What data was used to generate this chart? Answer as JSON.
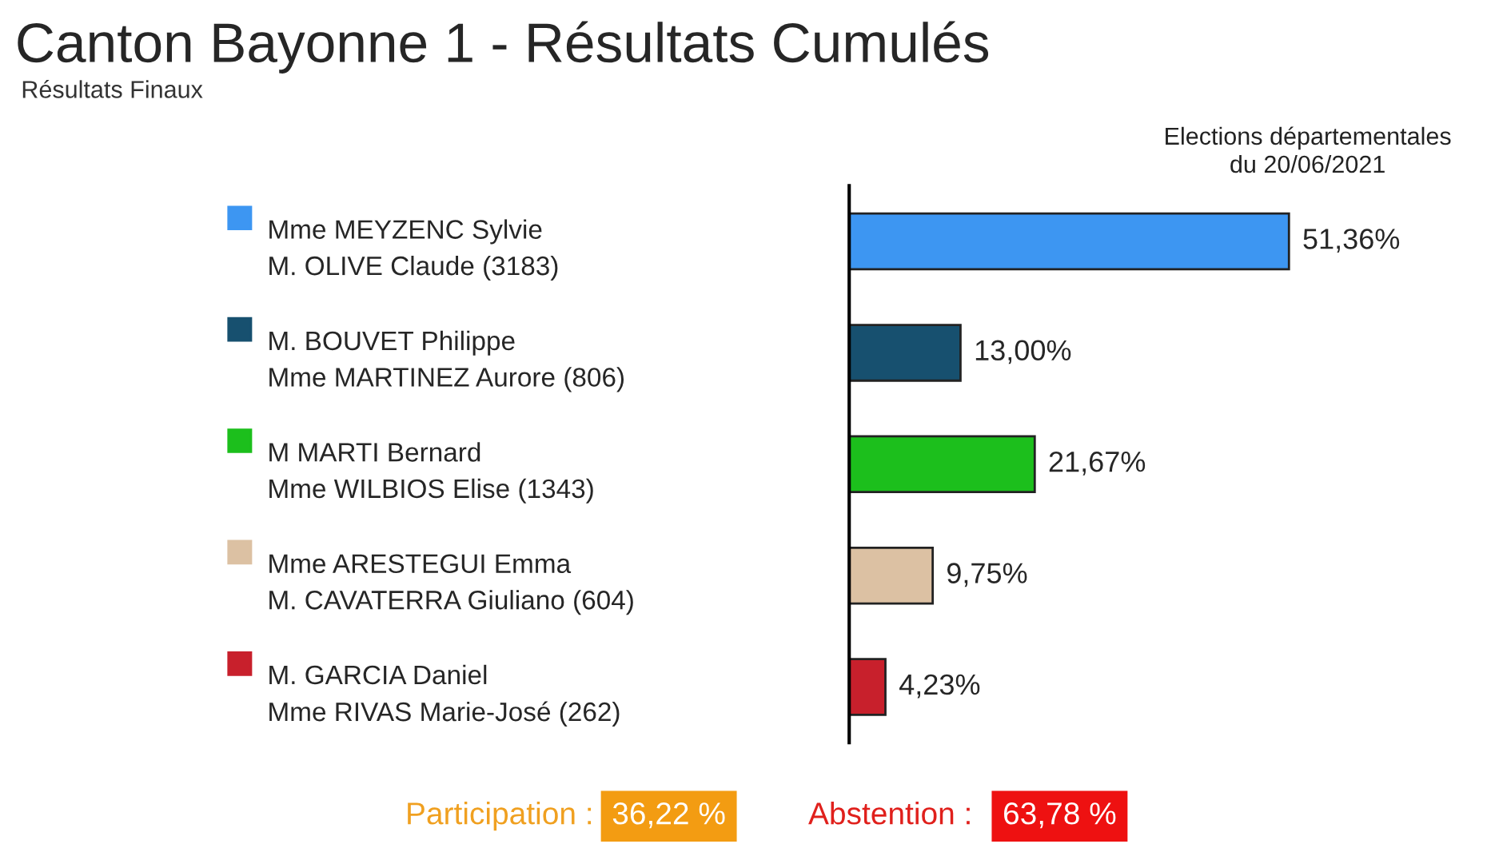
{
  "chart_data": {
    "type": "bar",
    "orientation": "horizontal",
    "title": "Canton Bayonne 1 - Résultats Cumulés",
    "subtitle": "Résultats Finaux",
    "categories": [
      "Mme MEYZENC Sylvie\nM. OLIVE Claude (3183)",
      "M. BOUVET Philippe\nMme MARTINEZ Aurore (806)",
      "M MARTI Bernard\nMme WILBIOS Elise (1343)",
      "Mme ARESTEGUI Emma\nM. CAVATERRA Giuliano (604)",
      "M. GARCIA Daniel\nMme RIVAS Marie-José (262)"
    ],
    "values": [
      51.36,
      13.0,
      21.67,
      9.75,
      4.23
    ],
    "colors": [
      "#3d96f2",
      "#17506f",
      "#1cbf1c",
      "#dcc1a3",
      "#c8202c"
    ],
    "value_labels": [
      "51,36%",
      "13,00%",
      "21,67%",
      "9,75%",
      "4,23%"
    ],
    "tick_labels": "y",
    "grid": false,
    "legend": false,
    "annotations": [
      "Elections départementales\ndu 20/06/2021",
      "Participation :",
      "36,22 %",
      "Abstention :",
      "63,78 %"
    ]
  }
}
